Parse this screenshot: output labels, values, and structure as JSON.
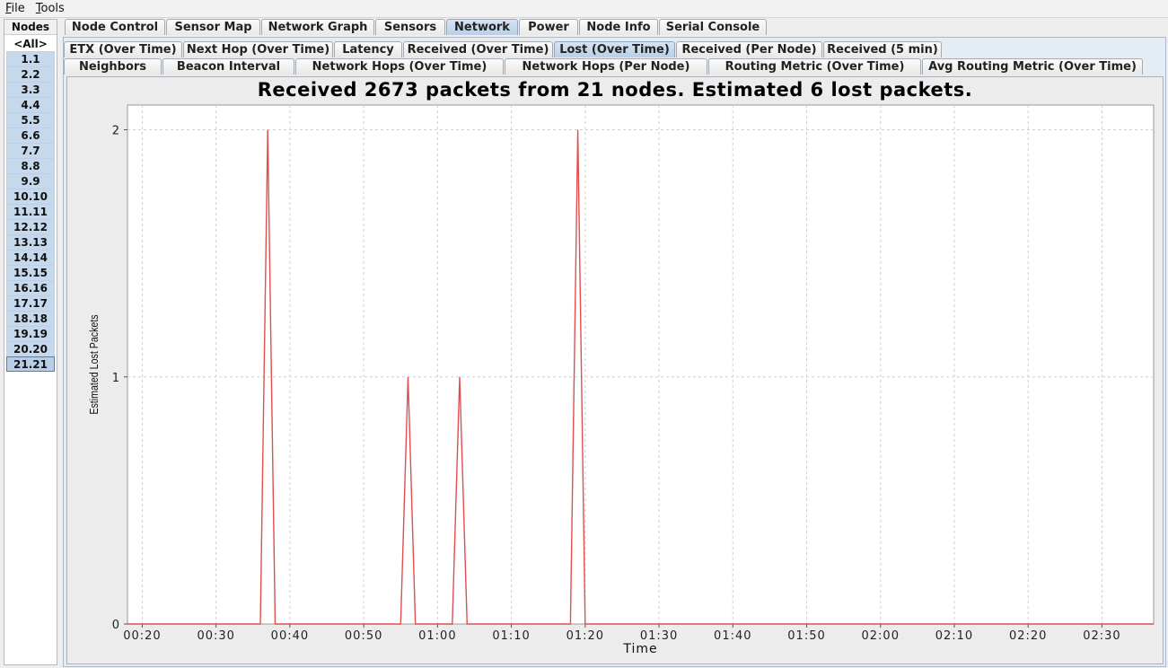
{
  "menu": [
    {
      "label": "File"
    },
    {
      "label": "Tools"
    }
  ],
  "nodes": {
    "title": "Nodes",
    "items": [
      "<All>",
      "1.1",
      "2.2",
      "3.3",
      "4.4",
      "5.5",
      "6.6",
      "7.7",
      "8.8",
      "9.9",
      "10.10",
      "11.11",
      "12.12",
      "13.13",
      "14.14",
      "15.15",
      "16.16",
      "17.17",
      "18.18",
      "19.19",
      "20.20",
      "21.21"
    ],
    "selected": "21.21"
  },
  "main_tabs": [
    {
      "label": "Node Control",
      "active": false
    },
    {
      "label": "Sensor Map",
      "active": false
    },
    {
      "label": "Network Graph",
      "active": false
    },
    {
      "label": "Sensors",
      "active": false
    },
    {
      "label": "Network",
      "active": true
    },
    {
      "label": "Power",
      "active": false
    },
    {
      "label": "Node Info",
      "active": false
    },
    {
      "label": "Serial Console",
      "active": false
    }
  ],
  "sub_tabs_row1": [
    {
      "label": "ETX (Over Time)",
      "active": false
    },
    {
      "label": "Next Hop (Over Time)",
      "active": false
    },
    {
      "label": "Latency",
      "active": false
    },
    {
      "label": "Received (Over Time)",
      "active": false
    },
    {
      "label": "Lost (Over Time)",
      "active": true
    },
    {
      "label": "Received (Per Node)",
      "active": false
    },
    {
      "label": "Received (5 min)",
      "active": false
    }
  ],
  "sub_tabs_row2": [
    {
      "label": "Neighbors",
      "active": false
    },
    {
      "label": "Beacon Interval",
      "active": false
    },
    {
      "label": "Network Hops (Over Time)",
      "active": false
    },
    {
      "label": "Network Hops (Per Node)",
      "active": false
    },
    {
      "label": "Routing Metric (Over Time)",
      "active": false
    },
    {
      "label": "Avg Routing Metric (Over Time)",
      "active": false
    }
  ],
  "chart_data": {
    "type": "line",
    "title": "Received 2673 packets from 21 nodes. Estimated 6 lost packets.",
    "xlabel": "Time",
    "ylabel": "Estimated Lost Packets",
    "xlim": [
      "00:18",
      "02:37"
    ],
    "ylim": [
      0,
      2.1
    ],
    "x_ticks": [
      "00:20",
      "00:30",
      "00:40",
      "00:50",
      "01:00",
      "01:10",
      "01:20",
      "01:30",
      "01:40",
      "01:50",
      "02:00",
      "02:10",
      "02:20",
      "02:30"
    ],
    "y_ticks": [
      0,
      1,
      2
    ],
    "grid": true,
    "legend": "none",
    "line_color": "#e05050",
    "series": [
      {
        "x": [
          "00:18",
          "00:36",
          "00:37",
          "00:38",
          "00:55",
          "00:56",
          "00:57",
          "01:02",
          "01:03",
          "01:04",
          "01:18",
          "01:19",
          "01:20",
          "02:37"
        ],
        "values": [
          0,
          0,
          2,
          0,
          0,
          1,
          0,
          0,
          1,
          0,
          0,
          2,
          0,
          0
        ]
      }
    ]
  }
}
